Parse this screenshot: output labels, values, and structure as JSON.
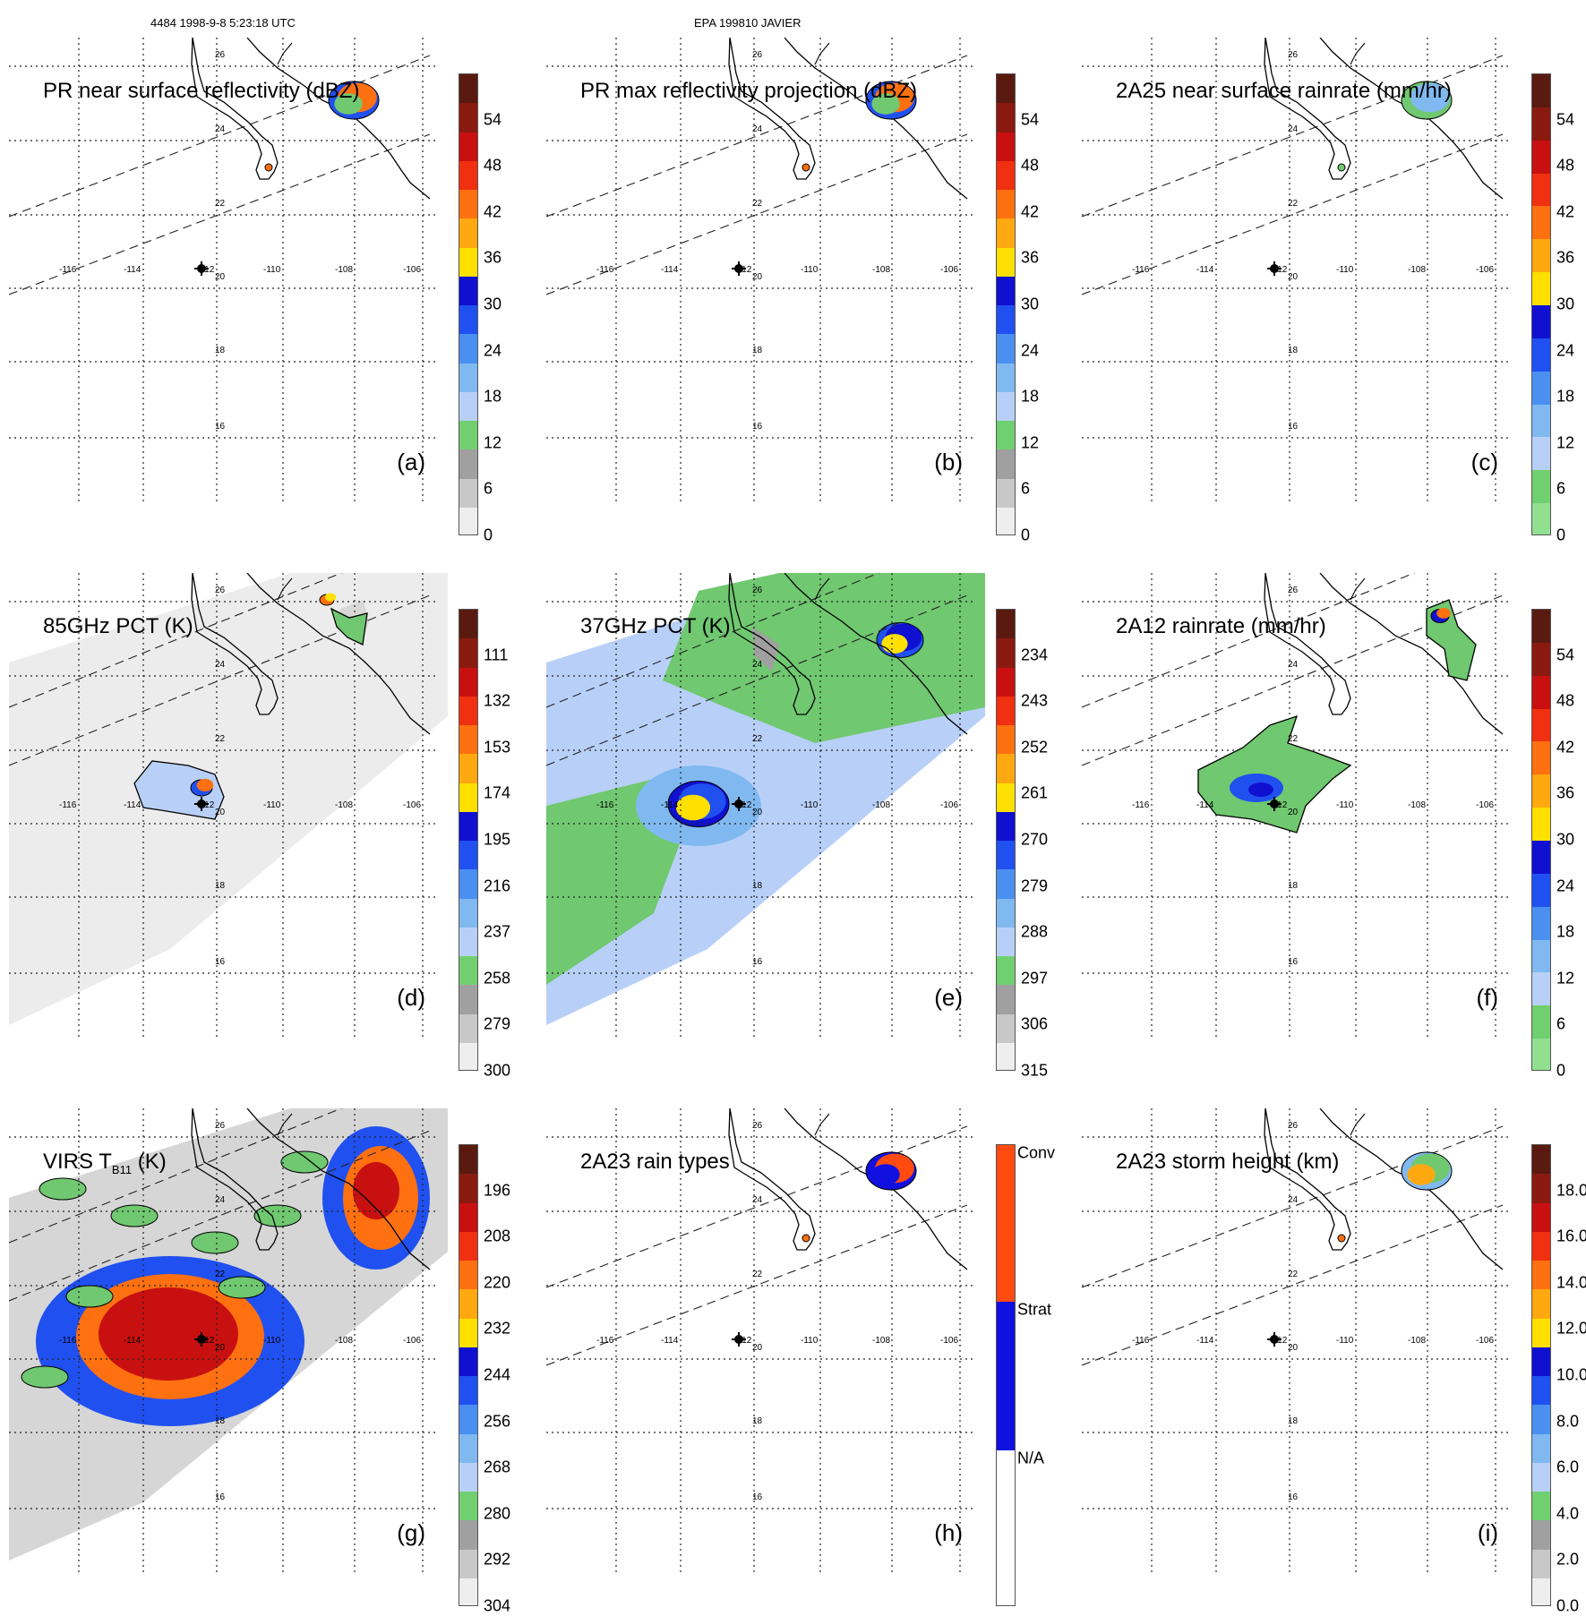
{
  "header": {
    "orbit_time": "4484 1998-9-8 5:23:18 UTC",
    "case": "EPA 199810 JAVIER"
  },
  "scales": {
    "reflectivity": {
      "labels": [
        "54",
        "48",
        "42",
        "36",
        "30",
        "24",
        "18",
        "12",
        "6",
        "0"
      ],
      "colors": [
        "#5a1a10",
        "#8a1a10",
        "#c81010",
        "#f03010",
        "#ff7010",
        "#ffa810",
        "#ffe000",
        "#1010d0",
        "#2050f0",
        "#4a90f0",
        "#80b8f0",
        "#b8d0f8",
        "#70d070",
        "#a0a0a0",
        "#c8c8c8",
        "#eeeeee"
      ]
    },
    "rainrate": {
      "labels": [
        "54",
        "48",
        "42",
        "36",
        "30",
        "24",
        "18",
        "12",
        "6",
        "0"
      ],
      "colors": [
        "#5a1a10",
        "#8a1a10",
        "#c81010",
        "#f03010",
        "#ff7010",
        "#ffa810",
        "#ffe000",
        "#1010d0",
        "#2050f0",
        "#4a90f0",
        "#80b8f0",
        "#b8d0f8",
        "#70d070",
        "#90e090"
      ]
    },
    "pct85": {
      "labels": [
        "111",
        "132",
        "153",
        "174",
        "195",
        "216",
        "237",
        "258",
        "279",
        "300"
      ],
      "colors": [
        "#5a1a10",
        "#8a1a10",
        "#c81010",
        "#f03010",
        "#ff7010",
        "#ffa810",
        "#ffe000",
        "#1010d0",
        "#2050f0",
        "#4a90f0",
        "#80b8f0",
        "#b8d0f8",
        "#70d070",
        "#a0a0a0",
        "#c8c8c8",
        "#eeeeee"
      ]
    },
    "pct37": {
      "labels": [
        "234",
        "243",
        "252",
        "261",
        "270",
        "279",
        "288",
        "297",
        "306",
        "315"
      ],
      "colors": [
        "#5a1a10",
        "#8a1a10",
        "#c81010",
        "#f03010",
        "#ff7010",
        "#ffa810",
        "#ffe000",
        "#1010d0",
        "#2050f0",
        "#4a90f0",
        "#80b8f0",
        "#b8d0f8",
        "#70d070",
        "#a0a0a0",
        "#c8c8c8",
        "#eeeeee"
      ]
    },
    "virs": {
      "labels": [
        "196",
        "208",
        "220",
        "232",
        "244",
        "256",
        "268",
        "280",
        "292",
        "304"
      ],
      "colors": [
        "#5a1a10",
        "#8a1a10",
        "#c81010",
        "#f03010",
        "#ff7010",
        "#ffa810",
        "#ffe000",
        "#1010d0",
        "#2050f0",
        "#4a90f0",
        "#80b8f0",
        "#b8d0f8",
        "#70d070",
        "#a0a0a0",
        "#c8c8c8",
        "#eeeeee"
      ]
    },
    "raintype": {
      "labels": [
        "Conv",
        "Strat",
        "N/A"
      ],
      "colors": [
        "#ff4a10",
        "#1010e0",
        "#ffffff"
      ]
    },
    "height": {
      "labels": [
        "18.0",
        "16.0",
        "14.0",
        "12.0",
        "10.0",
        "8.0",
        "6.0",
        "4.0",
        "2.0",
        "0.0"
      ],
      "colors": [
        "#5a1a10",
        "#8a1a10",
        "#c81010",
        "#f03010",
        "#ff7010",
        "#ffa810",
        "#ffe000",
        "#1010d0",
        "#2050f0",
        "#4a90f0",
        "#80b8f0",
        "#b8d0f8",
        "#70d070",
        "#a0a0a0",
        "#c8c8c8",
        "#eeeeee"
      ]
    }
  },
  "panels": [
    {
      "id": "a",
      "title": "PR near surface reflectivity (dBZ)",
      "label": "(a)",
      "scale": "reflectivity",
      "swath": "narrow",
      "bg": "none"
    },
    {
      "id": "b",
      "title": "PR max reflectivity projection (dBZ)",
      "label": "(b)",
      "scale": "reflectivity",
      "swath": "narrow",
      "bg": "none"
    },
    {
      "id": "c",
      "title": "2A25 near surface rainrate (mm/hr)",
      "label": "(c)",
      "scale": "rainrate",
      "swath": "narrow",
      "bg": "none"
    },
    {
      "id": "d",
      "title": "85GHz PCT (K)",
      "label": "(d)",
      "scale": "pct85",
      "swath": "wide",
      "bg": "gray"
    },
    {
      "id": "e",
      "title": "37GHz PCT (K)",
      "label": "(e)",
      "scale": "pct37",
      "swath": "wide",
      "bg": "color"
    },
    {
      "id": "f",
      "title": "2A12 rainrate (mm/hr)",
      "label": "(f)",
      "scale": "rainrate",
      "swath": "wide",
      "bg": "none"
    },
    {
      "id": "g",
      "title_main": "VIRS T",
      "title_sub": "B11",
      "title_unit": " (K)",
      "label": "(g)",
      "scale": "virs",
      "swath": "wide",
      "bg": "virs"
    },
    {
      "id": "h",
      "title": "2A23 rain types",
      "label": "(h)",
      "scale": "raintype",
      "swath": "narrow",
      "bg": "none"
    },
    {
      "id": "i",
      "title": "2A23 storm height (km)",
      "label": "(i)",
      "scale": "height",
      "swath": "narrow",
      "bg": "none"
    }
  ],
  "axis": {
    "lon_labels": [
      "-116",
      "-114",
      "-112",
      "-110",
      "-108",
      "-106"
    ],
    "lat_labels": [
      "26",
      "24",
      "22",
      "20",
      "18",
      "16"
    ]
  }
}
